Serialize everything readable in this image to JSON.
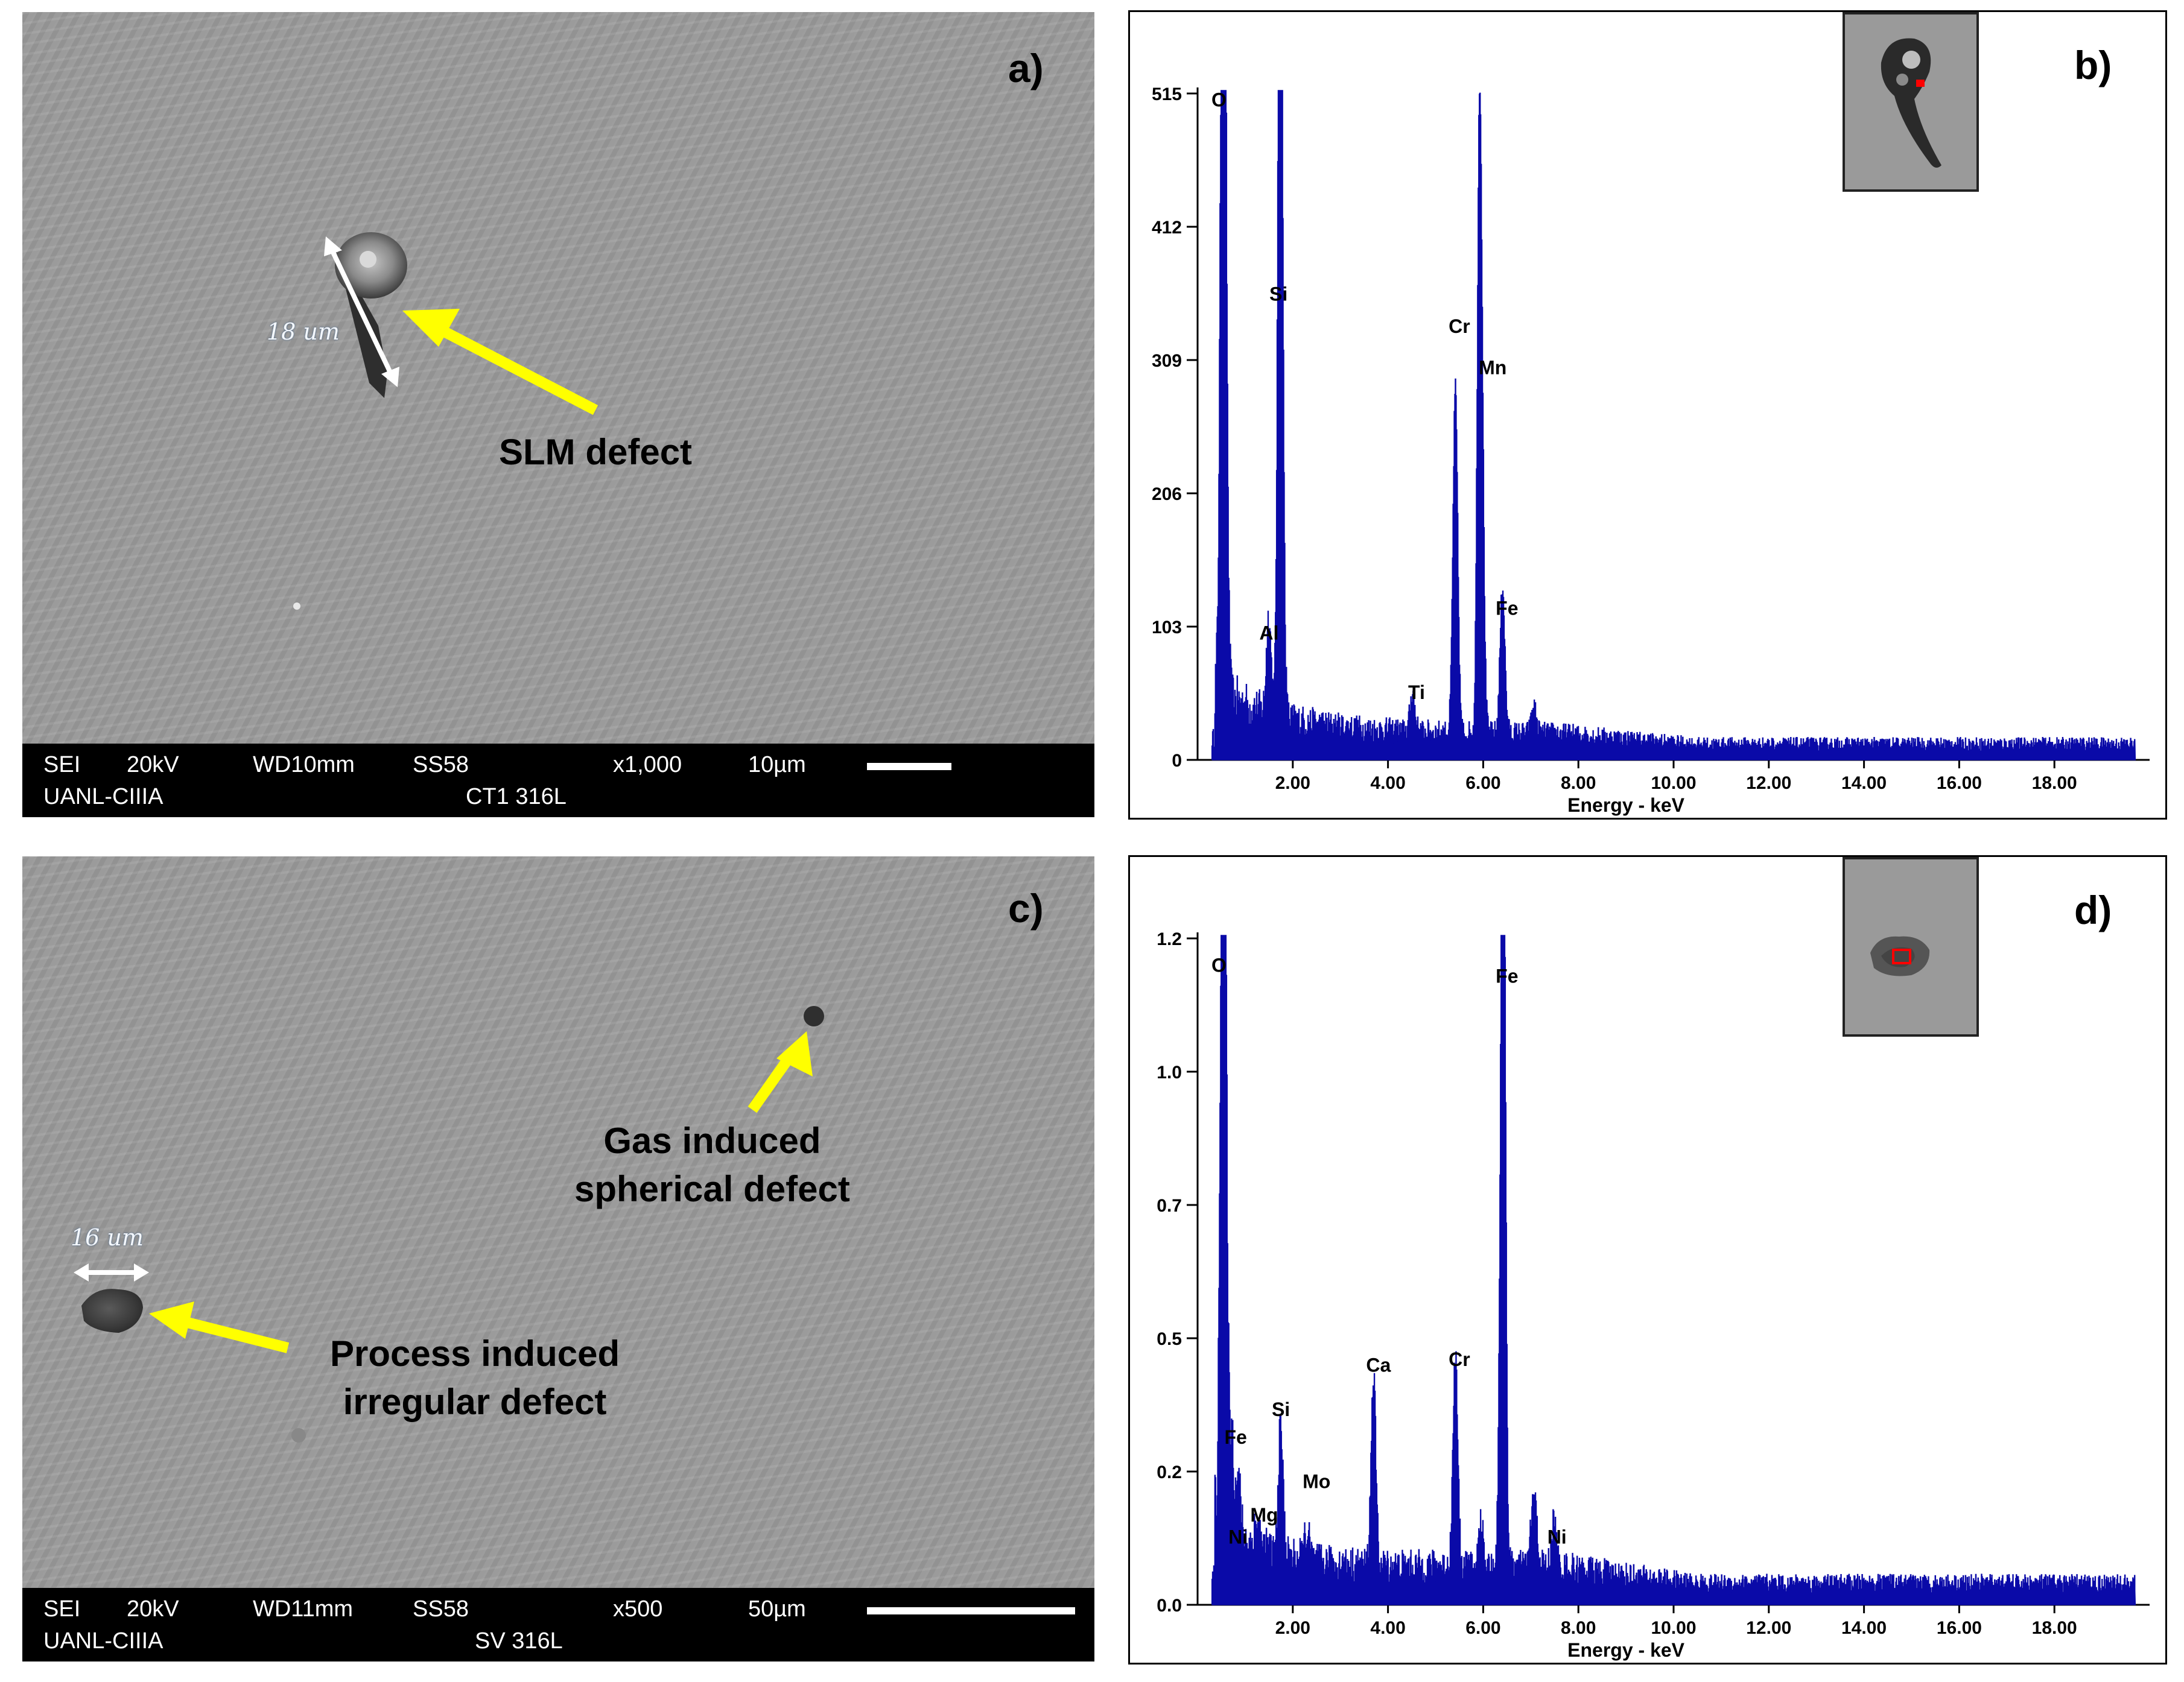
{
  "panels": {
    "a": {
      "letter": "a)",
      "infobar": {
        "mode": "SEI",
        "voltage": "20kV",
        "wd": "WD10mm",
        "spot": "SS58",
        "mag": "x1,000",
        "scale": "10µm",
        "org": "UANL-CIIIA",
        "sample": "CT1 316L"
      },
      "dimension_label": "18 um",
      "annotation": "SLM defect"
    },
    "c": {
      "letter": "c)",
      "infobar": {
        "mode": "SEI",
        "voltage": "20kV",
        "wd": "WD11mm",
        "spot": "SS58",
        "mag": "x500",
        "scale": "50µm",
        "org": "UANL-CIIIA",
        "sample": "SV 316L"
      },
      "dimension_label": "16 um",
      "annotation_gas_line1": "Gas induced",
      "annotation_gas_line2": "spherical defect",
      "annotation_proc_line1": "Process induced",
      "annotation_proc_line2": "irregular defect"
    },
    "b": {
      "letter": "b)"
    },
    "d": {
      "letter": "d)"
    }
  },
  "colors": {
    "spectrum": "#0a0aa8",
    "arrow": "#ffff00",
    "sem_gray": "#9d9d9d",
    "marker": "#ff0000"
  },
  "chart_data": [
    {
      "id": "b",
      "type": "line",
      "title": "",
      "xlabel": "Energy - keV",
      "ylabel": "",
      "xlim": [
        0,
        20
      ],
      "ylim": [
        0,
        515
      ],
      "yticks": [
        "0",
        "103",
        "206",
        "309",
        "412",
        "515"
      ],
      "ytick_values": [
        0,
        103,
        206,
        309,
        412,
        515
      ],
      "xticks": [
        "2.00",
        "4.00",
        "6.00",
        "8.00",
        "10.00",
        "12.00",
        "14.00",
        "16.00",
        "18.00"
      ],
      "xtick_values": [
        2,
        4,
        6,
        8,
        10,
        12,
        14,
        16,
        18
      ],
      "peaks": [
        {
          "x": 0.52,
          "y": 480,
          "w": 0.05
        },
        {
          "x": 0.56,
          "y": 410,
          "w": 0.05
        },
        {
          "x": 1.49,
          "y": 75,
          "w": 0.05
        },
        {
          "x": 1.74,
          "y": 490,
          "w": 0.05
        },
        {
          "x": 1.72,
          "y": 290,
          "w": 0.04
        },
        {
          "x": 4.51,
          "y": 30,
          "w": 0.05
        },
        {
          "x": 5.41,
          "y": 265,
          "w": 0.05
        },
        {
          "x": 5.95,
          "y": 330,
          "w": 0.05
        },
        {
          "x": 5.9,
          "y": 260,
          "w": 0.04
        },
        {
          "x": 6.4,
          "y": 115,
          "w": 0.05
        },
        {
          "x": 7.06,
          "y": 20,
          "w": 0.05
        }
      ],
      "background": {
        "amplitude": 45,
        "decay": 1.4,
        "floor": 8,
        "tail": 4
      },
      "labels": [
        {
          "text": "O",
          "x": 0.45,
          "y": 505
        },
        {
          "text": "Si",
          "x": 1.7,
          "y": 355
        },
        {
          "text": "Cr",
          "x": 5.5,
          "y": 330
        },
        {
          "text": "Mn",
          "x": 6.2,
          "y": 298
        },
        {
          "text": "Fe",
          "x": 6.5,
          "y": 112
        },
        {
          "text": "Al",
          "x": 1.5,
          "y": 93
        },
        {
          "text": "Ti",
          "x": 4.6,
          "y": 47
        }
      ]
    },
    {
      "id": "d",
      "type": "line",
      "title": "",
      "xlabel": "Energy - keV",
      "ylabel": "",
      "xlim": [
        0,
        20
      ],
      "ylim": [
        0,
        1.2
      ],
      "yticks": [
        "0.0",
        "0.2",
        "0.5",
        "0.7",
        "1.0",
        "1.2"
      ],
      "ytick_values": [
        0,
        0.24,
        0.48,
        0.72,
        0.96,
        1.2
      ],
      "xticks": [
        "2.00",
        "4.00",
        "6.00",
        "8.00",
        "10.00",
        "12.00",
        "14.00",
        "16.00",
        "18.00"
      ],
      "xtick_values": [
        2,
        4,
        6,
        8,
        10,
        12,
        14,
        16,
        18
      ],
      "peaks": [
        {
          "x": 0.52,
          "y": 1.06,
          "w": 0.05
        },
        {
          "x": 0.56,
          "y": 0.93,
          "w": 0.05
        },
        {
          "x": 0.71,
          "y": 0.17,
          "w": 0.05
        },
        {
          "x": 0.85,
          "y": 0.09,
          "w": 0.05
        },
        {
          "x": 1.25,
          "y": 0.05,
          "w": 0.05
        },
        {
          "x": 1.74,
          "y": 0.23,
          "w": 0.05
        },
        {
          "x": 2.29,
          "y": 0.05,
          "w": 0.06
        },
        {
          "x": 3.69,
          "y": 0.34,
          "w": 0.05
        },
        {
          "x": 5.41,
          "y": 0.38,
          "w": 0.05
        },
        {
          "x": 5.95,
          "y": 0.08,
          "w": 0.05
        },
        {
          "x": 6.4,
          "y": 1.12,
          "w": 0.05
        },
        {
          "x": 6.43,
          "y": 0.65,
          "w": 0.04
        },
        {
          "x": 7.06,
          "y": 0.13,
          "w": 0.06
        },
        {
          "x": 7.48,
          "y": 0.08,
          "w": 0.05
        }
      ],
      "background": {
        "amplitude": 0.14,
        "decay": 0.9,
        "floor": 0.03,
        "tail": 0.008
      },
      "labels": [
        {
          "text": "O",
          "x": 0.45,
          "y": 1.14
        },
        {
          "text": "Fe",
          "x": 6.5,
          "y": 1.12
        },
        {
          "text": "Ca",
          "x": 3.8,
          "y": 0.42
        },
        {
          "text": "Cr",
          "x": 5.5,
          "y": 0.43
        },
        {
          "text": "Si",
          "x": 1.75,
          "y": 0.34
        },
        {
          "text": "Mo",
          "x": 2.5,
          "y": 0.21
        },
        {
          "text": "Fe",
          "x": 0.8,
          "y": 0.29
        },
        {
          "text": "Mg",
          "x": 1.4,
          "y": 0.15
        },
        {
          "text": "Ni",
          "x": 0.85,
          "y": 0.11
        },
        {
          "text": "Ni",
          "x": 7.55,
          "y": 0.11
        }
      ]
    }
  ]
}
